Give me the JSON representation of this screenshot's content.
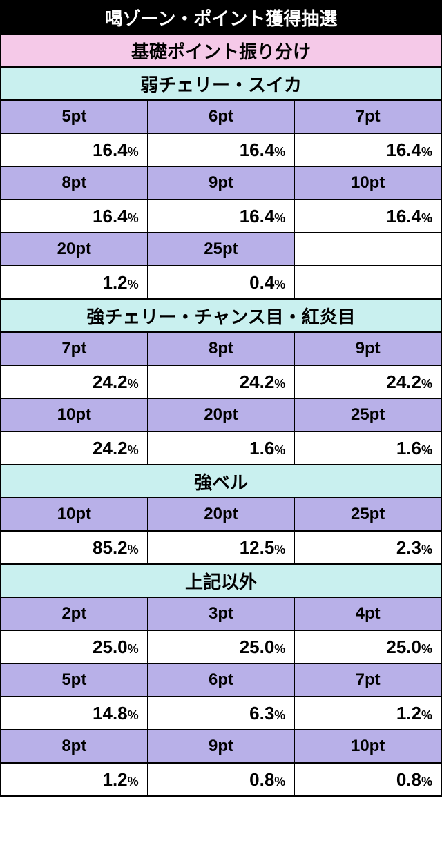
{
  "colors": {
    "title_bg": "#000000",
    "title_fg": "#ffffff",
    "pink_bg": "#f5c9e8",
    "cyan_bg": "#c9f0ef",
    "purple_bg": "#b8b0e8",
    "white_bg": "#ffffff",
    "border": "#000000"
  },
  "title": "喝ゾーン・ポイント獲得抽選",
  "main_header": "基礎ポイント振り分け",
  "sections": [
    {
      "label": "弱チェリー・スイカ",
      "rows": [
        {
          "headers": [
            "5pt",
            "6pt",
            "7pt"
          ],
          "values": [
            "16.4",
            "16.4",
            "16.4"
          ]
        },
        {
          "headers": [
            "8pt",
            "9pt",
            "10pt"
          ],
          "values": [
            "16.4",
            "16.4",
            "16.4"
          ]
        },
        {
          "headers": [
            "20pt",
            "25pt",
            ""
          ],
          "values": [
            "1.2",
            "0.4",
            ""
          ]
        }
      ]
    },
    {
      "label": "強チェリー・チャンス目・紅炎目",
      "rows": [
        {
          "headers": [
            "7pt",
            "8pt",
            "9pt"
          ],
          "values": [
            "24.2",
            "24.2",
            "24.2"
          ]
        },
        {
          "headers": [
            "10pt",
            "20pt",
            "25pt"
          ],
          "values": [
            "24.2",
            "1.6",
            "1.6"
          ]
        }
      ]
    },
    {
      "label": "強ベル",
      "rows": [
        {
          "headers": [
            "10pt",
            "20pt",
            "25pt"
          ],
          "values": [
            "85.2",
            "12.5",
            "2.3"
          ]
        }
      ]
    },
    {
      "label": "上記以外",
      "rows": [
        {
          "headers": [
            "2pt",
            "3pt",
            "4pt"
          ],
          "values": [
            "25.0",
            "25.0",
            "25.0"
          ]
        },
        {
          "headers": [
            "5pt",
            "6pt",
            "7pt"
          ],
          "values": [
            "14.8",
            "6.3",
            "1.2"
          ]
        },
        {
          "headers": [
            "8pt",
            "9pt",
            "10pt"
          ],
          "values": [
            "1.2",
            "0.8",
            "0.8"
          ]
        }
      ]
    }
  ],
  "percent_symbol": "%"
}
